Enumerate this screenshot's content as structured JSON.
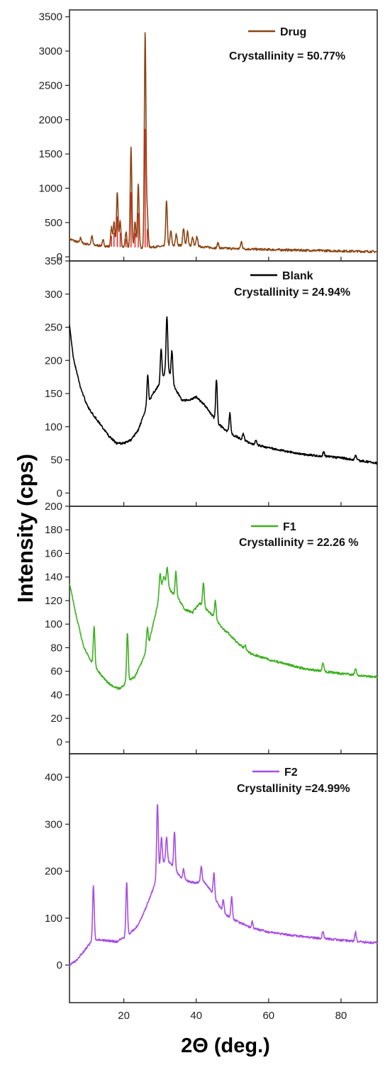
{
  "chart_data": {
    "type": "line",
    "y_axis_title": "Intensity (cps)",
    "x_axis_title": "2Θ (deg.)",
    "x_range": [
      5,
      90
    ],
    "x_ticks": [
      20,
      40,
      60,
      80
    ],
    "panels": [
      {
        "name": "Drug",
        "color": "#8B4513",
        "peak_color": "#E41B17",
        "annotation": "Crystallinity = 50.77%",
        "y_range": [
          -60,
          3600
        ],
        "y_ticks": [
          0,
          500,
          1000,
          1500,
          2000,
          2500,
          3000,
          3500
        ],
        "baseline": [
          [
            5,
            260
          ],
          [
            8,
            200
          ],
          [
            12,
            170
          ],
          [
            16,
            150
          ],
          [
            20,
            140
          ],
          [
            25,
            135
          ],
          [
            30,
            150
          ],
          [
            35,
            170
          ],
          [
            40,
            155
          ],
          [
            45,
            130
          ],
          [
            50,
            120
          ],
          [
            60,
            105
          ],
          [
            70,
            95
          ],
          [
            80,
            85
          ],
          [
            90,
            75
          ]
        ],
        "peaks": [
          [
            8.1,
            280
          ],
          [
            11.2,
            300
          ],
          [
            14.3,
            240
          ],
          [
            16.6,
            430
          ],
          [
            17.3,
            520
          ],
          [
            18.2,
            950
          ],
          [
            19.0,
            520
          ],
          [
            20.6,
            360
          ],
          [
            22.0,
            1600
          ],
          [
            23.1,
            520
          ],
          [
            24.0,
            1050
          ],
          [
            25.9,
            3280
          ],
          [
            26.5,
            620
          ],
          [
            31.8,
            810
          ],
          [
            33.0,
            380
          ],
          [
            34.5,
            330
          ],
          [
            36.5,
            420
          ],
          [
            37.6,
            380
          ],
          [
            39.0,
            280
          ],
          [
            40.2,
            300
          ],
          [
            46.0,
            200
          ],
          [
            52.5,
            220
          ]
        ]
      },
      {
        "name": "Blank",
        "color": "#000000",
        "annotation": "Crystallinity = 24.94%",
        "y_range": [
          -20,
          350
        ],
        "y_ticks": [
          0,
          50,
          100,
          150,
          200,
          250,
          300,
          350
        ],
        "baseline": [
          [
            5,
            255
          ],
          [
            6,
            205
          ],
          [
            8,
            160
          ],
          [
            10,
            130
          ],
          [
            12,
            115
          ],
          [
            14,
            100
          ],
          [
            16,
            85
          ],
          [
            18,
            75
          ],
          [
            20,
            75
          ],
          [
            22,
            80
          ],
          [
            24,
            95
          ],
          [
            26,
            125
          ],
          [
            28,
            150
          ],
          [
            30,
            165
          ],
          [
            32,
            190
          ],
          [
            34,
            160
          ],
          [
            36,
            140
          ],
          [
            38,
            140
          ],
          [
            40,
            145
          ],
          [
            42,
            135
          ],
          [
            44,
            120
          ],
          [
            46,
            105
          ],
          [
            48,
            95
          ],
          [
            50,
            88
          ],
          [
            55,
            75
          ],
          [
            60,
            68
          ],
          [
            70,
            58
          ],
          [
            80,
            53
          ],
          [
            90,
            45
          ]
        ],
        "peaks": [
          [
            26.6,
            178
          ],
          [
            30.3,
            218
          ],
          [
            31.9,
            267
          ],
          [
            33.3,
            215
          ],
          [
            45.6,
            172
          ],
          [
            49.3,
            120
          ],
          [
            53.0,
            90
          ],
          [
            56.5,
            80
          ],
          [
            75.2,
            62
          ],
          [
            84.0,
            57
          ]
        ]
      },
      {
        "name": "F1",
        "color": "#3DB01F",
        "annotation": "Crystallinity = 22.26 %",
        "y_range": [
          -10,
          200
        ],
        "y_ticks": [
          0,
          20,
          40,
          60,
          80,
          100,
          120,
          140,
          160,
          180,
          200
        ],
        "baseline": [
          [
            5,
            135
          ],
          [
            7,
            105
          ],
          [
            9,
            80
          ],
          [
            11,
            68
          ],
          [
            13,
            60
          ],
          [
            15,
            52
          ],
          [
            17,
            47
          ],
          [
            19,
            45
          ],
          [
            21,
            52
          ],
          [
            23,
            55
          ],
          [
            25,
            68
          ],
          [
            27,
            85
          ],
          [
            29,
            112
          ],
          [
            31,
            140
          ],
          [
            33,
            128
          ],
          [
            35,
            122
          ],
          [
            37,
            112
          ],
          [
            39,
            110
          ],
          [
            41,
            118
          ],
          [
            43,
            112
          ],
          [
            45,
            106
          ],
          [
            47,
            97
          ],
          [
            49,
            92
          ],
          [
            51,
            85
          ],
          [
            55,
            75
          ],
          [
            60,
            70
          ],
          [
            70,
            62
          ],
          [
            80,
            58
          ],
          [
            90,
            55
          ]
        ],
        "peaks": [
          [
            11.8,
            98
          ],
          [
            21.0,
            93
          ],
          [
            26.5,
            97
          ],
          [
            30.0,
            143
          ],
          [
            32.0,
            148
          ],
          [
            34.4,
            145
          ],
          [
            42.0,
            135
          ],
          [
            45.3,
            120
          ],
          [
            53.5,
            82
          ],
          [
            75.0,
            67
          ],
          [
            84.0,
            62
          ]
        ]
      },
      {
        "name": "F2",
        "color": "#A64DE6",
        "annotation": "Crystallinity =24.99%",
        "y_range": [
          -80,
          450
        ],
        "y_ticks": [
          0,
          100,
          200,
          300,
          400
        ],
        "baseline": [
          [
            5,
            0
          ],
          [
            7,
            10
          ],
          [
            9,
            30
          ],
          [
            10.5,
            45
          ],
          [
            12,
            55
          ],
          [
            15,
            52
          ],
          [
            18,
            50
          ],
          [
            20,
            58
          ],
          [
            22,
            70
          ],
          [
            24,
            85
          ],
          [
            26,
            120
          ],
          [
            28,
            160
          ],
          [
            30,
            210
          ],
          [
            32,
            225
          ],
          [
            34,
            205
          ],
          [
            36,
            185
          ],
          [
            38,
            178
          ],
          [
            40,
            175
          ],
          [
            42,
            178
          ],
          [
            44,
            160
          ],
          [
            46,
            130
          ],
          [
            48,
            108
          ],
          [
            50,
            98
          ],
          [
            55,
            80
          ],
          [
            60,
            70
          ],
          [
            70,
            60
          ],
          [
            80,
            53
          ],
          [
            90,
            47
          ]
        ],
        "peaks": [
          [
            11.6,
            170
          ],
          [
            20.8,
            175
          ],
          [
            29.3,
            345
          ],
          [
            30.4,
            272
          ],
          [
            31.8,
            272
          ],
          [
            34.0,
            283
          ],
          [
            36.5,
            205
          ],
          [
            41.4,
            210
          ],
          [
            44.9,
            195
          ],
          [
            47.5,
            140
          ],
          [
            49.8,
            145
          ],
          [
            55.5,
            92
          ],
          [
            75.0,
            72
          ],
          [
            84.0,
            70
          ]
        ]
      }
    ]
  }
}
